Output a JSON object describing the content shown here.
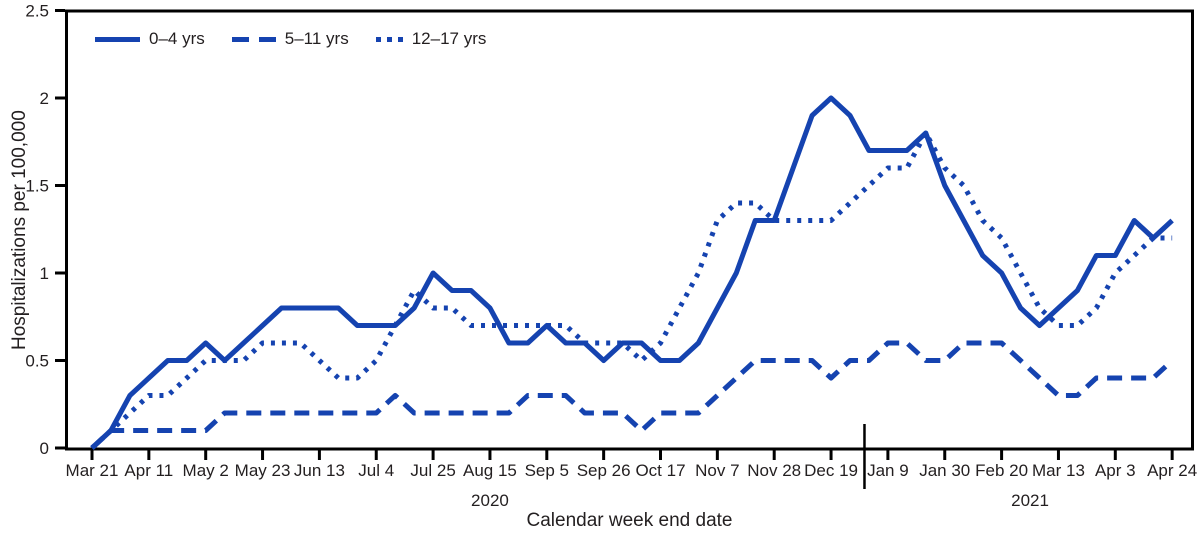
{
  "figure": {
    "background_color": "#ffffff",
    "text_color": "#231f20"
  },
  "chart_data": {
    "type": "line",
    "title": "",
    "xlabel": "Calendar week end date",
    "ylabel": "Hospitalizations per 100,000",
    "ylim": [
      0,
      2.5
    ],
    "grid": "off",
    "legend_position": "top-left inside plot",
    "line_color": "#1543b0",
    "axis_color": "#000000",
    "y_ticks": [
      "0",
      "0.5",
      "1",
      "1.5",
      "2",
      "2.5"
    ],
    "x_tick_labels": [
      "Mar 21",
      "Apr 11",
      "May 2",
      "May 23",
      "Jun 13",
      "Jul 4",
      "Jul 25",
      "Aug 15",
      "Sep 5",
      "Sep 26",
      "Oct 17",
      "Nov 7",
      "Nov 28",
      "Dec 19",
      "Jan 9",
      "Jan 30",
      "Feb 20",
      "Mar 13",
      "Apr 3",
      "Apr 24"
    ],
    "weeks_per_tick": 3,
    "n_points": 58,
    "year_labels": [
      "2020",
      "2021"
    ],
    "year_divider_after_index": 40,
    "series": [
      {
        "name": "0–4 yrs",
        "line_style": "solid",
        "values": [
          0,
          0.1,
          0.3,
          0.4,
          0.5,
          0.5,
          0.6,
          0.5,
          0.6,
          0.7,
          0.8,
          0.8,
          0.8,
          0.8,
          0.7,
          0.7,
          0.7,
          0.8,
          1.0,
          0.9,
          0.9,
          0.8,
          0.6,
          0.6,
          0.7,
          0.6,
          0.6,
          0.5,
          0.6,
          0.6,
          0.5,
          0.5,
          0.6,
          0.8,
          1.0,
          1.3,
          1.3,
          1.6,
          1.9,
          2.0,
          1.9,
          1.7,
          1.7,
          1.7,
          1.8,
          1.5,
          1.3,
          1.1,
          1.0,
          0.8,
          0.7,
          0.8,
          0.9,
          1.1,
          1.1,
          1.3,
          1.2,
          1.3
        ]
      },
      {
        "name": "5–11 yrs",
        "line_style": "dashed",
        "values": [
          0,
          0.1,
          0.1,
          0.1,
          0.1,
          0.1,
          0.1,
          0.2,
          0.2,
          0.2,
          0.2,
          0.2,
          0.2,
          0.2,
          0.2,
          0.2,
          0.3,
          0.2,
          0.2,
          0.2,
          0.2,
          0.2,
          0.2,
          0.3,
          0.3,
          0.3,
          0.2,
          0.2,
          0.2,
          0.1,
          0.2,
          0.2,
          0.2,
          0.3,
          0.4,
          0.5,
          0.5,
          0.5,
          0.5,
          0.4,
          0.5,
          0.5,
          0.6,
          0.6,
          0.5,
          0.5,
          0.6,
          0.6,
          0.6,
          0.5,
          0.4,
          0.3,
          0.3,
          0.4,
          0.4,
          0.4,
          0.4,
          0.5
        ]
      },
      {
        "name": "12–17 yrs",
        "line_style": "dotted",
        "values": [
          0,
          0.1,
          0.2,
          0.3,
          0.3,
          0.4,
          0.5,
          0.5,
          0.5,
          0.6,
          0.6,
          0.6,
          0.5,
          0.4,
          0.4,
          0.5,
          0.7,
          0.9,
          0.8,
          0.8,
          0.7,
          0.7,
          0.7,
          0.7,
          0.7,
          0.7,
          0.6,
          0.6,
          0.6,
          0.5,
          0.6,
          0.8,
          1.0,
          1.3,
          1.4,
          1.4,
          1.3,
          1.3,
          1.3,
          1.3,
          1.4,
          1.5,
          1.6,
          1.6,
          1.8,
          1.6,
          1.5,
          1.3,
          1.2,
          1.0,
          0.8,
          0.7,
          0.7,
          0.8,
          1.0,
          1.1,
          1.2,
          1.2
        ]
      }
    ]
  }
}
